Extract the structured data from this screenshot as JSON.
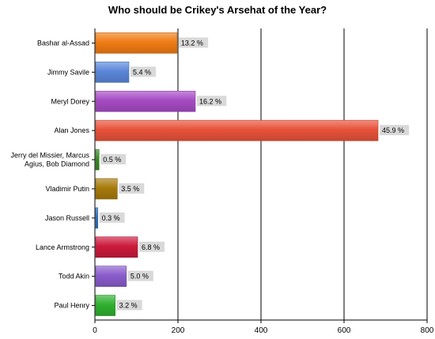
{
  "chart_data": {
    "type": "bar",
    "orientation": "horizontal",
    "title": "Who should be Crikey's Arsehat of the Year?",
    "xlim": [
      0,
      800
    ],
    "x_ticks": [
      "0",
      "200",
      "400",
      "600",
      "800"
    ],
    "grid": true,
    "categories": [
      "Bashar al-Assad",
      "Jimmy Savile",
      "Meryl Dorey",
      "Alan Jones",
      "Jerry del Missier, Marcus Agius, Bob Diamond",
      "Vladimir Putin",
      "Jason Russell",
      "Lance Armstrong",
      "Todd Akin",
      "Paul Henry"
    ],
    "values": [
      196,
      80,
      240,
      680,
      8,
      52,
      5,
      101,
      74,
      47
    ],
    "data_labels": [
      "13.2 %",
      "5.4 %",
      "16.2 %",
      "45.9 %",
      "0.5 %",
      "3.5 %",
      "0.3 %",
      "6.8 %",
      "5.0 %",
      "3.2 %"
    ],
    "colors": [
      "#f07c14",
      "#5b87d9",
      "#a64bc4",
      "#e8523a",
      "#3a8a24",
      "#a87a0c",
      "#2a74c4",
      "#cc1a3c",
      "#8a5ccc",
      "#30b030"
    ]
  }
}
